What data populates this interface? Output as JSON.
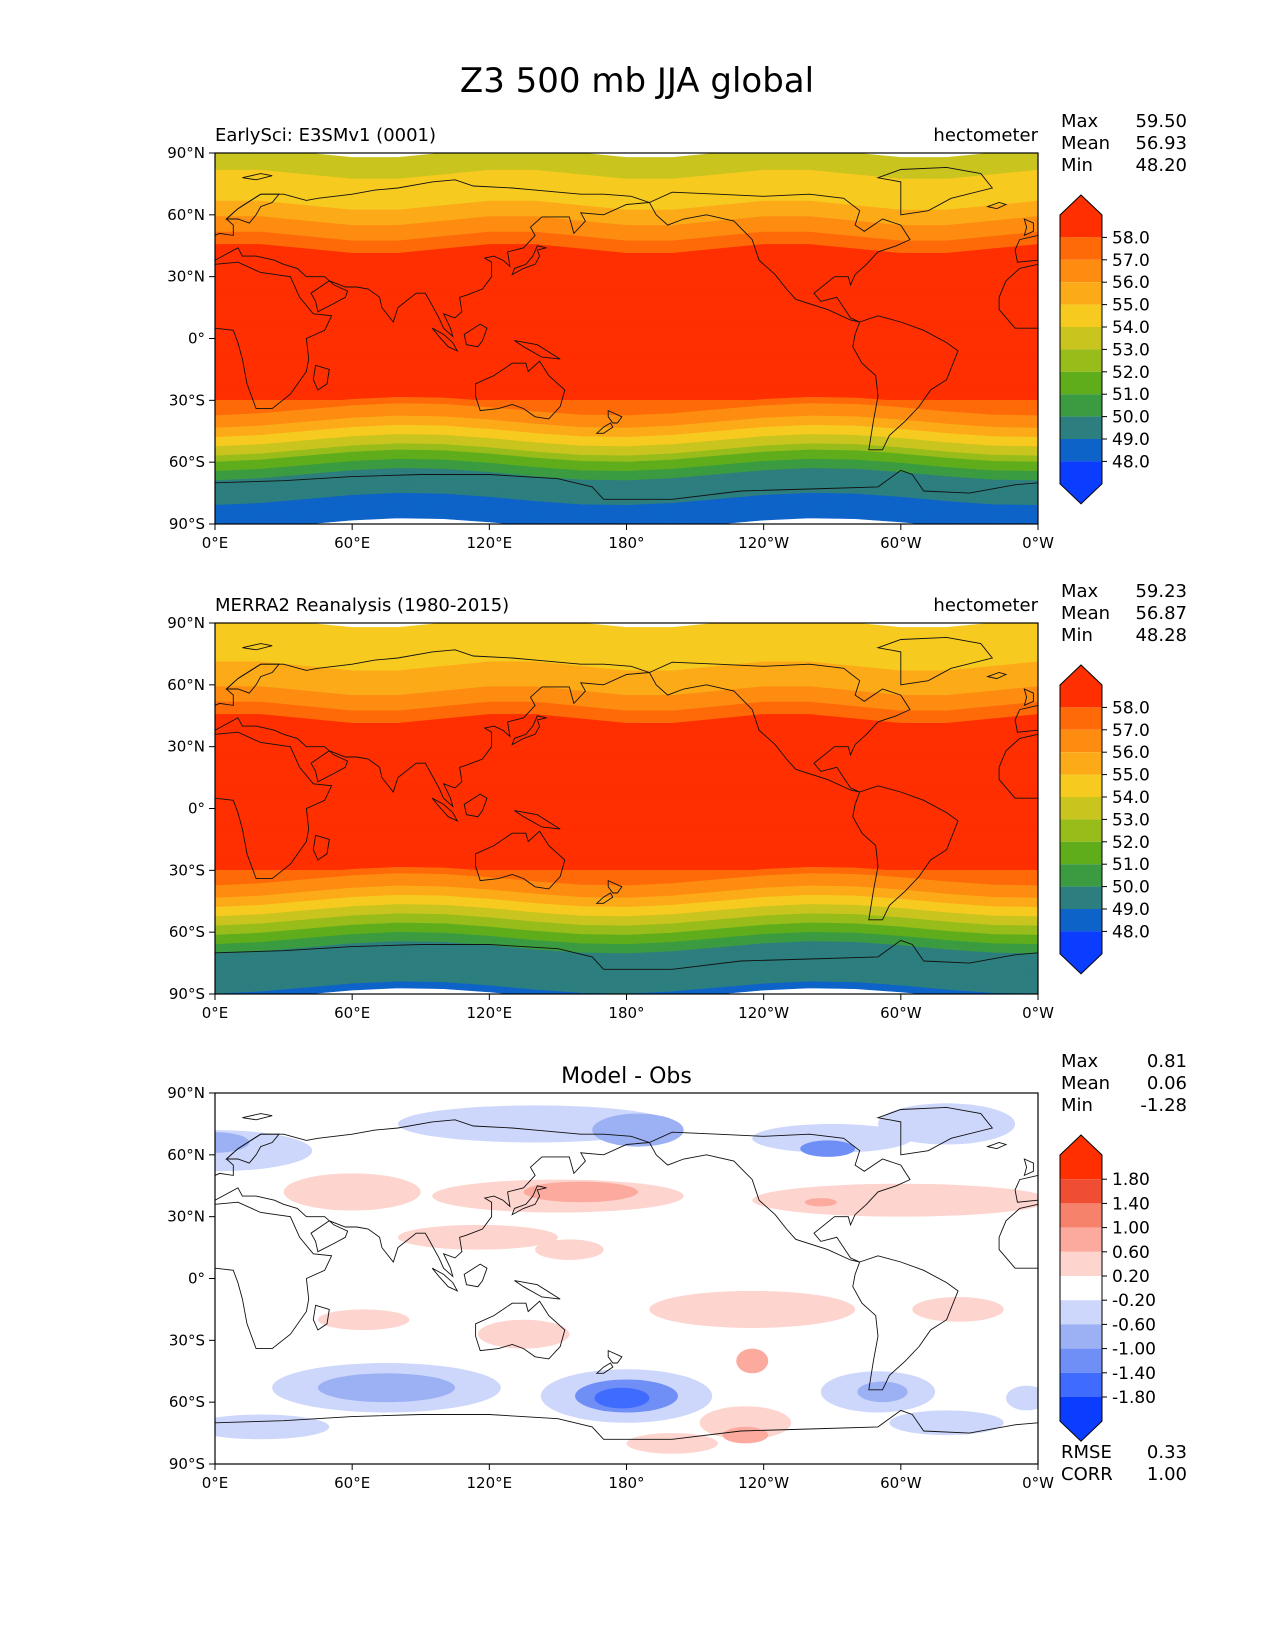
{
  "figure": {
    "title": "Z3 500 mb JJA global"
  },
  "lon_ticks": [
    "0°E",
    "60°E",
    "120°E",
    "180°",
    "120°W",
    "60°W",
    "0°W"
  ],
  "lat_ticks": [
    "90°N",
    "60°N",
    "30°N",
    "0°",
    "30°S",
    "60°S",
    "90°S"
  ],
  "colors": {
    "abs_levels": [
      "#0a3dff",
      "#0d63c8",
      "#2d7e7e",
      "#3a9b40",
      "#60ad1c",
      "#98bc1a",
      "#cac41f",
      "#f7ca20",
      "#fdaa18",
      "#fd8c10",
      "#ff6a08",
      "#ff2f00"
    ],
    "diff_levels": [
      "#0a3dff",
      "#3f6bff",
      "#6f8ff7",
      "#9cb0f4",
      "#cdd7fb",
      "#ffffff",
      "#fdd4ce",
      "#fcaa9e",
      "#f7826b",
      "#f04e33",
      "#ff2f00"
    ]
  },
  "chart_data": [
    {
      "type": "heatmap",
      "title_left": "EarlySci: E3SMv1 (0001)",
      "title_right": "hectometer",
      "units": "hectometer",
      "stats": {
        "labels": [
          "Max",
          "Mean",
          "Min"
        ],
        "values": [
          "59.50",
          "56.93",
          "48.20"
        ]
      },
      "colorbar": {
        "ticks": [
          "58.0",
          "57.0",
          "56.0",
          "55.0",
          "54.0",
          "53.0",
          "52.0",
          "51.0",
          "50.0",
          "49.0",
          "48.0"
        ]
      },
      "xlim": [
        0,
        360
      ],
      "ylim": [
        -90,
        90
      ],
      "zonal_profile": {
        "lat": [
          90,
          75,
          65,
          55,
          48,
          40,
          35,
          25,
          0,
          -25,
          -30,
          -35,
          -40,
          -45,
          -50,
          -55,
          -60,
          -65,
          -70,
          -75,
          -90
        ],
        "value": [
          53.4,
          54.2,
          55.0,
          56.2,
          57.2,
          58.5,
          58.6,
          58.8,
          58.9,
          58.6,
          58.0,
          57.0,
          56.0,
          55.0,
          54.0,
          52.6,
          51.3,
          50.2,
          49.5,
          49.1,
          48.6
        ]
      }
    },
    {
      "type": "heatmap",
      "title_left": "MERRA2 Reanalysis (1980-2015)",
      "title_right": "hectometer",
      "units": "hectometer",
      "stats": {
        "labels": [
          "Max",
          "Mean",
          "Min"
        ],
        "values": [
          "59.23",
          "56.87",
          "48.28"
        ]
      },
      "colorbar": {
        "ticks": [
          "58.0",
          "57.0",
          "56.0",
          "55.0",
          "54.0",
          "53.0",
          "52.0",
          "51.0",
          "50.0",
          "49.0",
          "48.0"
        ]
      },
      "xlim": [
        0,
        360
      ],
      "ylim": [
        -90,
        90
      ],
      "zonal_profile": {
        "lat": [
          90,
          75,
          65,
          55,
          48,
          40,
          35,
          25,
          0,
          -25,
          -30,
          -35,
          -40,
          -45,
          -50,
          -55,
          -60,
          -65,
          -70,
          -75,
          -90
        ],
        "value": [
          54.1,
          54.6,
          55.2,
          56.3,
          57.3,
          58.5,
          58.6,
          58.8,
          58.9,
          58.6,
          58.0,
          57.0,
          56.0,
          55.0,
          54.0,
          52.8,
          51.6,
          50.4,
          49.7,
          49.3,
          48.9
        ]
      }
    },
    {
      "type": "heatmap",
      "title_center": "Model - Obs",
      "stats": {
        "labels": [
          "Max",
          "Mean",
          "Min"
        ],
        "values": [
          "0.81",
          "0.06",
          "-1.28"
        ]
      },
      "colorbar": {
        "ticks": [
          "1.80",
          "1.40",
          "1.00",
          "0.60",
          "0.20",
          "-0.20",
          "-0.60",
          "-1.00",
          "-1.40",
          "-1.80"
        ]
      },
      "metrics": {
        "labels": [
          "RMSE",
          "CORR"
        ],
        "values": [
          "0.33",
          "1.00"
        ]
      },
      "xlim": [
        0,
        360
      ],
      "ylim": [
        -90,
        90
      ]
    }
  ]
}
